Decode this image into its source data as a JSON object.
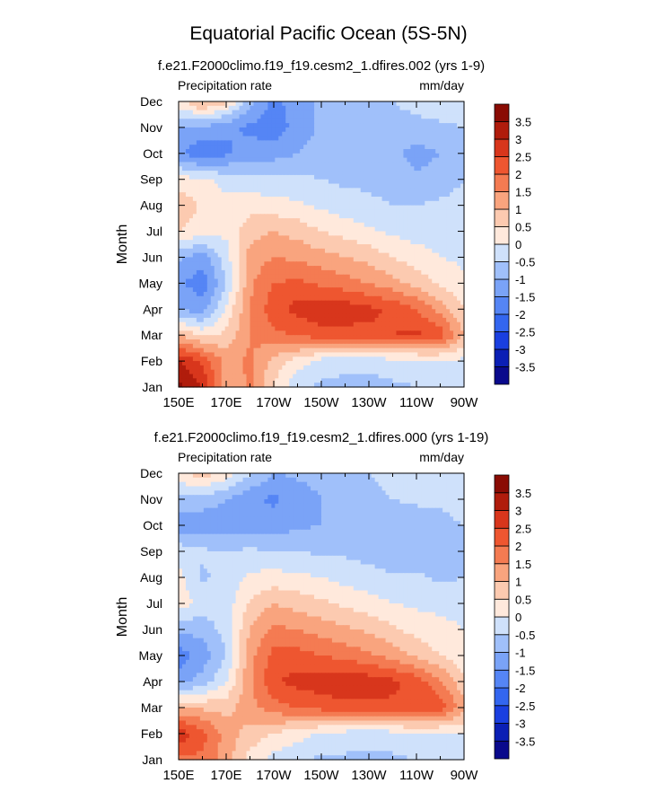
{
  "title": "Equatorial Pacific Ocean (5S-5N)",
  "colorbar": {
    "colors": [
      "#0a0a8c",
      "#0b1fb5",
      "#1a3fe0",
      "#3366f0",
      "#5585f5",
      "#7aa3f7",
      "#a0c0fa",
      "#cfe1fb",
      "#ffe9dc",
      "#fccab0",
      "#f9a47e",
      "#f47b52",
      "#ee5630",
      "#d8361c",
      "#b01c0c",
      "#8a0c04"
    ],
    "tick_labels": [
      "-3.5",
      "-3",
      "-2.5",
      "-2",
      "-1.5",
      "-1",
      "-0.5",
      "0",
      "0.5",
      "1",
      "1.5",
      "2",
      "2.5",
      "3",
      "3.5"
    ]
  },
  "chart_data": [
    {
      "type": "heatmap",
      "subtitle": "f.e21.F2000climo.f19_f19.cesm2_1.dfires.002 (yrs 1-9)",
      "left_string": "Precipitation rate",
      "right_string": "mm/day",
      "ylabel": "Month",
      "xlabel": "",
      "x_tick_labels": [
        "150E",
        "170E",
        "170W",
        "150W",
        "130W",
        "110W",
        "90W"
      ],
      "y_tick_labels": [
        "Jan",
        "Feb",
        "Mar",
        "Apr",
        "May",
        "Jun",
        "Jul",
        "Aug",
        "Sep",
        "Oct",
        "Nov",
        "Dec"
      ],
      "x_range_deg_east": [
        150,
        270
      ],
      "y_range_month": [
        1,
        12
      ],
      "contour_interval": 0.5,
      "units": "mm/day",
      "grid": [
        [
          3.6,
          3.0,
          1.0,
          1.6,
          0.5,
          -0.4,
          -0.6,
          -0.6,
          -0.7,
          -0.6,
          -0.5,
          -0.4,
          -0.3
        ],
        [
          3.0,
          2.4,
          1.3,
          1.6,
          0.8,
          0.3,
          -0.2,
          -0.4,
          -0.3,
          -0.2,
          -0.2,
          -0.1,
          -0.1
        ],
        [
          1.0,
          0.4,
          0.6,
          1.5,
          1.9,
          2.0,
          2.3,
          2.3,
          2.4,
          2.5,
          2.6,
          2.3,
          1.0
        ],
        [
          -1.0,
          -1.3,
          0.1,
          1.5,
          2.3,
          2.7,
          2.9,
          2.8,
          2.6,
          2.4,
          2.0,
          1.3,
          0.5
        ],
        [
          -1.4,
          -1.8,
          -0.5,
          1.4,
          2.0,
          2.1,
          1.9,
          1.7,
          1.5,
          1.2,
          0.8,
          0.4,
          0.1
        ],
        [
          -0.9,
          -1.3,
          -0.2,
          1.2,
          1.5,
          1.4,
          1.2,
          1.0,
          0.8,
          0.5,
          0.2,
          0.0,
          -0.1
        ],
        [
          0.5,
          0.3,
          0.1,
          0.8,
          1.0,
          0.8,
          0.5,
          0.3,
          0.1,
          -0.1,
          -0.2,
          -0.2,
          -0.2
        ],
        [
          0.9,
          0.4,
          0.2,
          0.3,
          0.2,
          0.1,
          -0.1,
          -0.3,
          -0.4,
          -0.5,
          -0.5,
          -0.4,
          -0.3
        ],
        [
          0.2,
          0.1,
          -0.2,
          -0.3,
          -0.4,
          -0.4,
          -0.5,
          -0.6,
          -0.6,
          -0.7,
          -0.9,
          -0.8,
          -0.5
        ],
        [
          -1.4,
          -1.9,
          -1.6,
          -1.3,
          -1.2,
          -1.0,
          -0.8,
          -0.8,
          -0.8,
          -0.9,
          -1.2,
          -1.0,
          -0.6
        ],
        [
          -1.1,
          -1.1,
          -1.4,
          -1.6,
          -1.8,
          -1.3,
          -0.9,
          -0.7,
          -0.6,
          -0.6,
          -0.6,
          -0.6,
          -0.5
        ],
        [
          0.3,
          1.2,
          0.6,
          -0.8,
          -1.7,
          -1.2,
          -0.9,
          -0.7,
          -0.6,
          -0.5,
          -0.4,
          -0.2,
          -0.1
        ]
      ]
    },
    {
      "type": "heatmap",
      "subtitle": "f.e21.F2000climo.f19_f19.cesm2_1.dfires.000 (yrs 1-19)",
      "left_string": "Precipitation rate",
      "right_string": "mm/day",
      "ylabel": "Month",
      "xlabel": "",
      "x_tick_labels": [
        "150E",
        "170E",
        "170W",
        "150W",
        "130W",
        "110W",
        "90W"
      ],
      "y_tick_labels": [
        "Jan",
        "Feb",
        "Mar",
        "Apr",
        "May",
        "Jun",
        "Jul",
        "Aug",
        "Sep",
        "Oct",
        "Nov",
        "Dec"
      ],
      "x_range_deg_east": [
        150,
        270
      ],
      "y_range_month": [
        1,
        12
      ],
      "contour_interval": 0.5,
      "units": "mm/day",
      "grid": [
        [
          1.8,
          1.9,
          1.2,
          0.3,
          -0.2,
          -0.4,
          -0.6,
          -0.6,
          -0.6,
          -0.6,
          -0.5,
          -0.4,
          -0.3
        ],
        [
          2.9,
          2.2,
          1.3,
          0.8,
          0.5,
          0.2,
          -0.1,
          -0.2,
          -0.3,
          -0.2,
          -0.1,
          -0.1,
          0.0
        ],
        [
          1.0,
          0.9,
          0.8,
          1.3,
          1.8,
          2.0,
          2.2,
          2.3,
          2.4,
          2.4,
          2.5,
          2.3,
          1.2
        ],
        [
          -1.2,
          -0.8,
          0.0,
          1.4,
          2.4,
          2.7,
          2.8,
          2.9,
          2.8,
          2.6,
          2.3,
          1.6,
          0.6
        ],
        [
          -1.8,
          -1.3,
          -0.5,
          1.3,
          2.2,
          2.2,
          2.0,
          1.8,
          1.6,
          1.3,
          0.9,
          0.5,
          0.2
        ],
        [
          -0.9,
          -0.8,
          -0.3,
          1.0,
          1.6,
          1.5,
          1.3,
          1.1,
          0.9,
          0.6,
          0.3,
          0.1,
          0.0
        ],
        [
          0.3,
          -0.2,
          -0.3,
          0.6,
          1.0,
          0.8,
          0.6,
          0.4,
          0.2,
          0.0,
          -0.1,
          -0.1,
          -0.1
        ],
        [
          0.2,
          -0.6,
          -0.3,
          0.1,
          0.2,
          0.1,
          0.0,
          -0.2,
          -0.3,
          -0.4,
          -0.4,
          -0.6,
          -0.5
        ],
        [
          -0.2,
          -0.4,
          -0.5,
          -0.4,
          -0.5,
          -0.5,
          -0.6,
          -0.6,
          -0.7,
          -1.0,
          -0.8,
          -0.7,
          -0.5
        ],
        [
          -1.3,
          -1.4,
          -1.2,
          -1.3,
          -1.3,
          -1.1,
          -1.0,
          -0.9,
          -1.0,
          -0.9,
          -0.8,
          -0.7,
          -0.5
        ],
        [
          -0.6,
          -0.7,
          -1.0,
          -1.4,
          -1.6,
          -1.3,
          -1.0,
          -0.7,
          -0.6,
          -0.5,
          -0.4,
          -0.4,
          -0.2
        ],
        [
          0.3,
          0.8,
          0.3,
          -0.4,
          -1.0,
          -0.9,
          -0.8,
          -0.6,
          -0.5,
          -0.4,
          -0.3,
          -0.2,
          -0.1
        ]
      ]
    }
  ]
}
